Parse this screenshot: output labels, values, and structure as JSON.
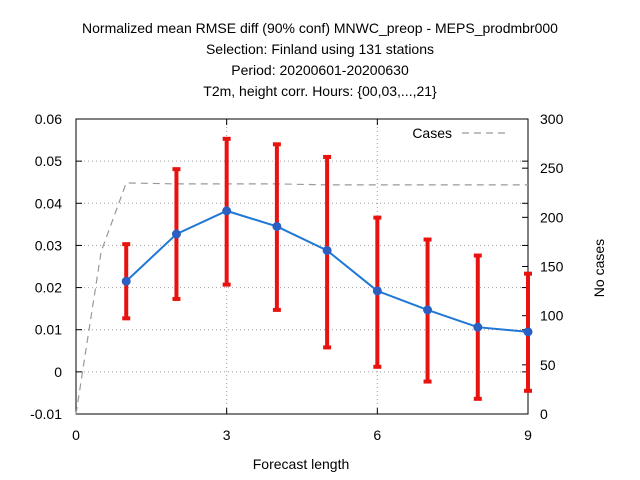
{
  "chart_data": {
    "type": "line",
    "title_lines": [
      "Normalized mean RMSE diff (90% conf) MNWC_preop - MEPS_prodmbr000",
      "Selection: Finland using   131 stations",
      "Period: 20200601-20200630",
      "T2m, height corr.   Hours: {00,03,...,21}"
    ],
    "xlabel": "Forecast length",
    "ylabel_right": "No cases",
    "xlim": [
      0,
      9
    ],
    "ylim": [
      -0.01,
      0.06
    ],
    "y2lim": [
      0,
      300
    ],
    "x_ticks": [
      "0",
      "3",
      "6",
      "9"
    ],
    "x_tick_values": [
      0,
      3,
      6,
      9
    ],
    "y_ticks": [
      "-0.01",
      "0",
      "0.01",
      "0.02",
      "0.03",
      "0.04",
      "0.05",
      "0.06"
    ],
    "y_tick_values": [
      -0.01,
      0,
      0.01,
      0.02,
      0.03,
      0.04,
      0.05,
      0.06
    ],
    "y2_ticks": [
      "0",
      "50",
      "100",
      "150",
      "200",
      "250",
      "300"
    ],
    "y2_tick_values": [
      0,
      50,
      100,
      150,
      200,
      250,
      300
    ],
    "grid": true,
    "legend_position": "top-right",
    "series": [
      {
        "kind": "line-errorbars",
        "color": "#1f78d4",
        "error_color": "#e8120f",
        "x": [
          1,
          2,
          3,
          4,
          5,
          6,
          7,
          8,
          9
        ],
        "y": [
          0.0215,
          0.0327,
          0.0382,
          0.0345,
          0.0288,
          0.0192,
          0.0147,
          0.0106,
          0.0095
        ],
        "err_low": [
          0.0127,
          0.0173,
          0.0207,
          0.0147,
          0.0058,
          0.0012,
          -0.0023,
          -0.0064,
          -0.0045
        ],
        "err_high": [
          0.0303,
          0.0481,
          0.0553,
          0.054,
          0.051,
          0.0366,
          0.0314,
          0.0276,
          0.0233
        ]
      },
      {
        "name": "Cases",
        "kind": "dashed-line",
        "axis": "right",
        "color": "#999999",
        "x": [
          0,
          0.5,
          1,
          2,
          3,
          4,
          5,
          6,
          7,
          8,
          9
        ],
        "y": [
          0,
          165,
          235,
          234,
          234,
          234,
          233,
          233,
          233,
          233,
          233
        ]
      }
    ]
  }
}
